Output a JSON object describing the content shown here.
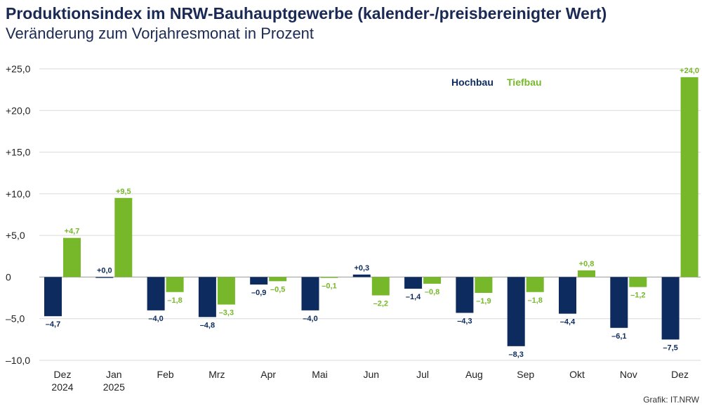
{
  "title": "Produktionsindex im NRW-Bauhauptgewerbe (kalender-/preisbereinigter Wert)",
  "subtitle": "Veränderung zum Vorjahresmonat in Prozent",
  "credit": "Grafik: IT.NRW",
  "colors": {
    "hochbau": "#0d2b5e",
    "tiefbau": "#77b82a",
    "grid": "#d9d9d9",
    "axis": "#999999"
  },
  "chart_data": {
    "type": "bar",
    "ylim": [
      -10,
      25
    ],
    "yticks": [
      -10,
      -5,
      0,
      5,
      10,
      15,
      20,
      25
    ],
    "ytick_labels": [
      "–10,0",
      "–5,0",
      "0",
      "+5,0",
      "+10,0",
      "+15,0",
      "+20,0",
      "+25,0"
    ],
    "categories": [
      [
        "Dez",
        "2024"
      ],
      [
        "Jan",
        "2025"
      ],
      [
        "Feb"
      ],
      [
        "Mrz"
      ],
      [
        "Apr"
      ],
      [
        "Mai"
      ],
      [
        "Jun"
      ],
      [
        "Jul"
      ],
      [
        "Aug"
      ],
      [
        "Sep"
      ],
      [
        "Okt"
      ],
      [
        "Nov"
      ],
      [
        "Dez"
      ]
    ],
    "legend_position": "top-right",
    "series": [
      {
        "name": "Hochbau",
        "values": [
          -4.7,
          0.0,
          -4.0,
          -4.8,
          -0.9,
          -4.0,
          0.3,
          -1.4,
          -4.3,
          -8.3,
          -4.4,
          -6.1,
          -7.5
        ],
        "labels": [
          "–4,7",
          "+0,0",
          "–4,0",
          "–4,8",
          "–0,9",
          "–4,0",
          "+0,3",
          "–1,4",
          "–4,3",
          "–8,3",
          "–4,4",
          "–6,1",
          "–7,5"
        ]
      },
      {
        "name": "Tiefbau",
        "values": [
          4.7,
          9.5,
          -1.8,
          -3.3,
          -0.5,
          -0.1,
          -2.2,
          -0.8,
          -1.9,
          -1.8,
          0.8,
          -1.2,
          24.0
        ],
        "labels": [
          "+4,7",
          "+9,5",
          "–1,8",
          "–3,3",
          "–0,5",
          "–0,1",
          "–2,2",
          "–0,8",
          "–1,9",
          "–1,8",
          "+0,8",
          "–1,2",
          "+24,0"
        ]
      }
    ]
  }
}
